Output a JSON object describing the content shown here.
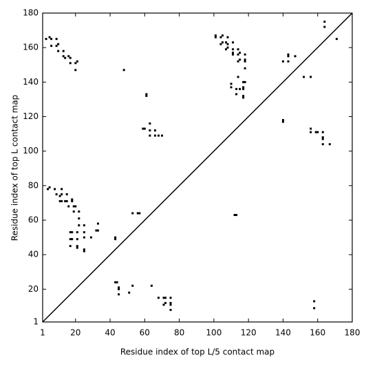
{
  "chart_data": {
    "type": "scatter",
    "xlabel": "Residue index of top L/5 contact map",
    "ylabel": "Residue index of top L contact map",
    "xlim": [
      1,
      180
    ],
    "ylim": [
      1,
      180
    ],
    "xticks": [
      1,
      20,
      40,
      60,
      80,
      100,
      120,
      140,
      160,
      180
    ],
    "yticks": [
      1,
      20,
      40,
      60,
      80,
      100,
      120,
      140,
      160,
      180
    ],
    "grid": false,
    "series": [
      {
        "color": "#000000",
        "x": [
          3,
          6,
          5,
          6,
          9,
          9,
          10,
          10,
          13,
          14,
          13,
          17,
          16,
          17,
          20,
          21,
          20,
          48,
          61,
          61,
          101,
          101,
          104,
          105,
          108,
          104,
          105,
          108,
          107,
          107,
          108,
          111,
          111,
          111,
          111,
          114,
          114,
          115,
          118,
          118,
          118,
          114,
          115,
          118,
          114,
          117,
          118,
          110,
          110,
          113,
          115,
          117,
          117,
          113,
          117,
          117,
          164,
          164,
          171,
          143,
          143,
          147,
          140,
          143,
          152,
          156,
          140,
          140,
          59,
          60,
          63,
          63,
          66,
          68,
          70,
          63,
          66,
          156,
          156,
          159,
          160,
          163,
          163,
          163,
          163,
          167,
          113,
          112,
          5,
          4,
          8,
          12,
          9,
          12,
          11,
          15,
          12,
          11,
          15,
          14,
          18,
          18,
          16,
          19,
          20,
          19,
          22,
          22,
          22,
          25,
          18,
          17,
          21,
          25,
          18,
          17,
          21,
          25,
          29,
          32,
          33,
          33,
          17,
          21,
          21,
          25,
          25,
          43,
          43,
          53,
          56,
          57,
          43,
          44,
          45,
          45,
          45,
          53,
          51,
          64,
          68,
          71,
          72,
          75,
          71,
          72,
          75,
          75,
          75,
          158,
          158
        ],
        "values": [
          165,
          165,
          166,
          161,
          165,
          161,
          162,
          158,
          158,
          154,
          155,
          154,
          155,
          151,
          151,
          152,
          147,
          147,
          133,
          132,
          166,
          167,
          166,
          167,
          166,
          162,
          163,
          162,
          163,
          159,
          160,
          163,
          159,
          156,
          157,
          159,
          156,
          157,
          156,
          152,
          153,
          152,
          153,
          148,
          143,
          140,
          140,
          139,
          137,
          136,
          136,
          136,
          137,
          133,
          132,
          131,
          175,
          172,
          165,
          155,
          156,
          155,
          152,
          152,
          143,
          143,
          117,
          118,
          113,
          113,
          116,
          112,
          109,
          109,
          109,
          109,
          112,
          113,
          111,
          111,
          111,
          111,
          108,
          107,
          104,
          104,
          63,
          63,
          79,
          78,
          78,
          78,
          75,
          75,
          74,
          75,
          71,
          71,
          71,
          71,
          71,
          72,
          68,
          68,
          68,
          65,
          65,
          61,
          57,
          57,
          53,
          53,
          53,
          53,
          49,
          49,
          49,
          50,
          50,
          54,
          54,
          58,
          45,
          45,
          44,
          43,
          42,
          49,
          50,
          64,
          64,
          64,
          24,
          24,
          20,
          21,
          17,
          22,
          18,
          22,
          15,
          15,
          15,
          15,
          11,
          12,
          11,
          12,
          8,
          13,
          9
        ]
      }
    ]
  }
}
